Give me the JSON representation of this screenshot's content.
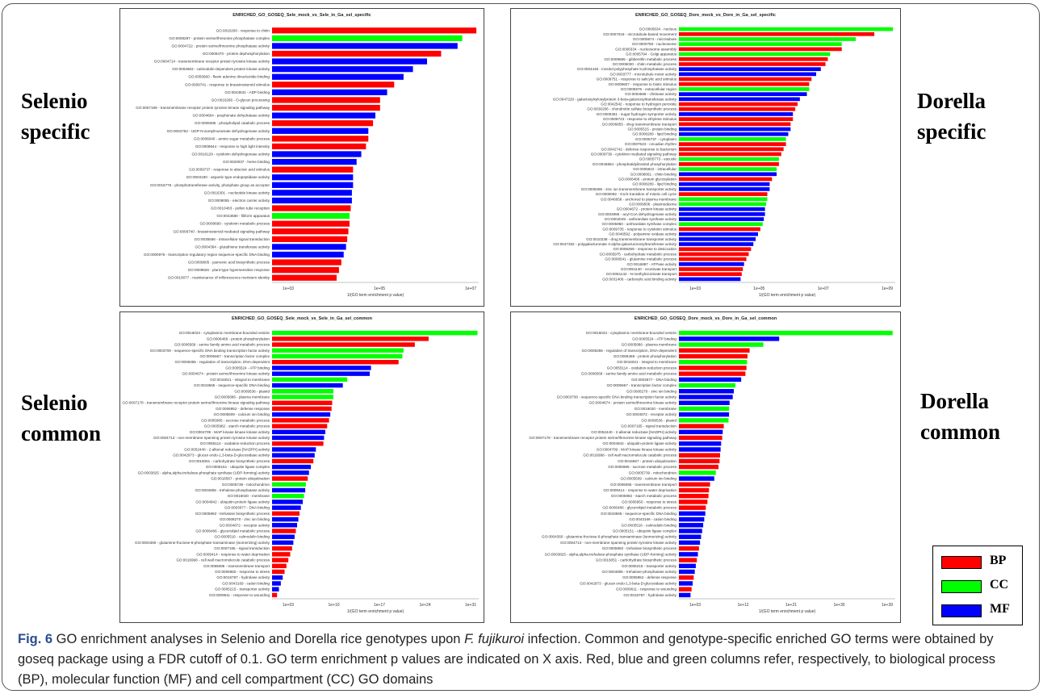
{
  "side_labels": {
    "selenio_specific": "Selenio\nspecific",
    "dorella_specific": "Dorella\nspecific",
    "selenio_common": "Selenio\ncommon",
    "dorella_common": "Dorella\ncommon"
  },
  "legend": [
    {
      "label": "BP",
      "color": "#ff0000"
    },
    {
      "label": "CC",
      "color": "#00ff00"
    },
    {
      "label": "MF",
      "color": "#0000ff"
    }
  ],
  "caption": {
    "fig_label": "Fig. 6",
    "part1": " GO enrichment analyses in Selenio and Dorella rice genotypes upon ",
    "organism": "F. fujikuroi",
    "part2": " infection. Common and genotype-specific enriched GO terms were obtained by goseq package using a FDR cutoff of 0.1. GO term enrichment p values are indicated on X axis. Red, blue and green columns refer, respectively, to biological process (BP), molecular function (MF) and cell compartment (CC) GO domains"
  },
  "colors": {
    "BP": "#ff0000",
    "CC": "#00ff00",
    "MF": "#0000ff"
  },
  "chart_data": [
    {
      "type": "bar",
      "orientation": "horizontal",
      "title": "ENRICHED_GO_GOSEQ_Sele_mock_vs_Sele_in_Ga_sel_specific",
      "xlabel": "1/(GO term enrichment p value)",
      "x_scale": "log",
      "xticks": [
        "1e+03",
        "1e+05",
        "1e+07"
      ],
      "xlim_log10": [
        0,
        8.8
      ],
      "categories": [
        "GO:0010200 - response to chitin",
        "GO:0008287 - protein serine/threonine phosphatase complex",
        "GO:0004722 - protein serine/threonine phosphatase activity",
        "GO:0006470 - protein dephosphorylation",
        "GO:0004714 - transmembrane receptor protein tyrosine kinase activity",
        "GO:0004683 - calmodulin-dependent protein kinase activity",
        "GO:0050660 - flavin adenine dinucleotide binding",
        "GO:0009741 - response to brassinosteroid stimulus",
        "GO:0043531 - ADP binding",
        "GO:0016266 - O-glycan processing",
        "GO:0007169 - transmembrane receptor protein tyrosine kinase signaling pathway",
        "GO:0004664 - prephenate dehydratase activity",
        "GO:0009395 - phospholipid catabolic process",
        "GO:0004762 - UDP-N-acetylmuramate dehydrogenase activity",
        "GO:0006040 - amino sugar metabolic process",
        "GO:0009644 - response to high light intensity",
        "GO:0016129 - cytokinin dehydrogenase activity",
        "GO:0020037 - heme binding",
        "GO:0009737 - response to abscisic acid stimulus",
        "GO:0004190 - aspartic-type endopeptidase activity",
        "GO:0016776 - phosphotransferase activity, phosphate group as acceptor",
        "GO:0016301 - nucleotide kinase activity",
        "GO:0009055 - electron carrier activity",
        "GO:0010483 - pollen tube reception",
        "GO:0043680 - filiform apparatus",
        "GO:0009690 - cytokinin metabolic process",
        "GO:0009740 - brassinosteroid mediated signaling pathway",
        "GO:0035556 - intracellular signal transduction",
        "GO:0004364 - glutathione transferase activity",
        "GO:0000976 - transcription regulatory region sequence-specific DNA binding",
        "GO:0009805 - jasmonic acid biosynthetic process",
        "GO:0009626 - plant-type hypersensitive response",
        "GO:0010077 - maintenance of inflorescence meristem identity"
      ],
      "values_log10": [
        8.7,
        8.1,
        7.9,
        7.2,
        6.6,
        6.0,
        5.6,
        5.2,
        4.9,
        4.6,
        4.6,
        4.4,
        4.3,
        4.1,
        4.1,
        4.0,
        3.8,
        3.6,
        3.45,
        3.45,
        3.45,
        3.4,
        3.4,
        3.35,
        3.3,
        3.3,
        3.25,
        3.2,
        3.15,
        3.05,
        2.95,
        2.85,
        2.75
      ],
      "domains": [
        "BP",
        "CC",
        "MF",
        "BP",
        "MF",
        "MF",
        "MF",
        "BP",
        "MF",
        "BP",
        "BP",
        "MF",
        "BP",
        "MF",
        "BP",
        "BP",
        "MF",
        "MF",
        "BP",
        "MF",
        "MF",
        "MF",
        "MF",
        "BP",
        "CC",
        "BP",
        "BP",
        "BP",
        "MF",
        "MF",
        "BP",
        "BP",
        "BP"
      ]
    },
    {
      "type": "bar",
      "orientation": "horizontal",
      "title": "ENRICHED_GO_GOSEQ_Dore_mock_vs_Dore_in_Ga_sel_specific",
      "xlabel": "1/(GO term enrichment p value)",
      "x_scale": "log",
      "xticks": [
        "1e+03",
        "1e+05",
        "1e+07",
        "1e+09"
      ],
      "xlim_log10": [
        0,
        9.3
      ],
      "categories": [
        "GO:0005634 - nucleus",
        "GO:0007018 - microtubule-based movement",
        "GO:0005874 - microtubule",
        "GO:0000786 - nucleosome",
        "GO:0006334 - nucleosome assembly",
        "GO:0005794 - Golgi apparatus",
        "GO:0009685 - gibberellin metabolic process",
        "GO:0006030 - chitin metabolic process",
        "GO:0004445 - inositol-polyphosphate 5-phosphatase activity",
        "GO:0003777 - microtubule motor activity",
        "GO:0009751 - response to salicylic acid stimulus",
        "GO:0009607 - response to biotic stimulus",
        "GO:0005576 - extracellular region",
        "GO:0004568 - chitinase activity",
        "GO:0047220 - galactosylxylosylprotein 3-beta-galactosyltransferase activity",
        "GO:0042542 - response to hydrogen peroxide",
        "GO:0030206 - chondroitin sulfate biosynthetic process",
        "GO:0005351 - sugar:hydrogen symporter activity",
        "GO:0009723 - response to ethylene stimulus",
        "GO:0006855 - drug transmembrane transport",
        "GO:0005515 - protein binding",
        "GO:0008289 - lipid binding",
        "GO:0005737 - cytoplasm",
        "GO:0007623 - circadian rhythm",
        "GO:0042742 - defense response to bacterium",
        "GO:0009736 - cytokinin mediated signaling pathway",
        "GO:0005773 - vacuole",
        "GO:0046854 - phosphatidylinositol phosphorylation",
        "GO:0005622 - intracellular",
        "GO:0008061 - chitin binding",
        "GO:0006486 - protein glycosylation",
        "GO:0008289 - lipid binding",
        "GO:0005385 - zinc ion transmembrane transporter activity",
        "GO:0000082 - G1/S transition of mitotic cell cycle",
        "GO:0046658 - anchored to plasma membrane",
        "GO:0009506 - plasmodesma",
        "GO:0004672 - protein kinase activity",
        "GO:0003995 - acyl-CoA dehydrogenase activity",
        "GO:0004049 - anthranilate synthase activity",
        "GO:0005950 - anthranilate synthase complex",
        "GO:0009735 - response to cytokinin stimulus",
        "GO:0046592 - polyamine oxidase activity",
        "GO:0010238 - drug transmembrane transporter activity",
        "GO:0047262 - polygalacturonate 4-alpha-galacturonosyltransferase activity",
        "GO:0009269 - response to desiccation",
        "GO:0005975 - carbohydrate metabolic process",
        "GO:0006541 - glutamine metabolic process",
        "GO:0016887 - ATPase activity",
        "GO:0051140 - nicotinate transport",
        "GO:0051142 - N-methylnicotinate transport",
        "GO:0031406 - carboxylic acid binding activity"
      ],
      "values_log10": [
        9.2,
        8.4,
        7.6,
        7.0,
        7.0,
        6.5,
        6.4,
        6.3,
        6.1,
        5.9,
        5.7,
        5.6,
        5.6,
        5.5,
        5.2,
        5.1,
        5.0,
        4.9,
        4.9,
        4.8,
        4.8,
        4.7,
        4.6,
        4.6,
        4.5,
        4.4,
        4.3,
        4.3,
        4.2,
        4.2,
        4.0,
        3.9,
        3.9,
        3.8,
        3.8,
        3.75,
        3.7,
        3.7,
        3.65,
        3.6,
        3.5,
        3.4,
        3.3,
        3.2,
        3.1,
        3.0,
        2.9,
        2.8,
        2.75,
        2.7,
        2.65
      ],
      "domains": [
        "CC",
        "BP",
        "CC",
        "CC",
        "BP",
        "CC",
        "BP",
        "BP",
        "MF",
        "MF",
        "BP",
        "BP",
        "CC",
        "MF",
        "MF",
        "BP",
        "BP",
        "MF",
        "BP",
        "BP",
        "MF",
        "MF",
        "CC",
        "BP",
        "BP",
        "BP",
        "CC",
        "BP",
        "CC",
        "MF",
        "BP",
        "MF",
        "MF",
        "BP",
        "CC",
        "CC",
        "MF",
        "MF",
        "MF",
        "CC",
        "BP",
        "MF",
        "MF",
        "MF",
        "BP",
        "BP",
        "BP",
        "MF",
        "BP",
        "BP",
        "MF"
      ]
    },
    {
      "type": "bar",
      "orientation": "horizontal",
      "title": "ENRICHED_GO_GOSEQ_Sele_mock_vs_Sele_in_Ga_sel_common",
      "xlabel": "1/(GO term enrichment p value)",
      "x_scale": "log",
      "xticks": [
        "1e+03",
        "1e+10",
        "1e+17",
        "1e+24",
        "1e+31"
      ],
      "xlim_log10": [
        0,
        33
      ],
      "categories": [
        "GO:0016023 - cytoplasmic membrane-bounded vesicle",
        "GO:0006468 - protein phosphorylation",
        "GO:0006569 - serine family amino acid metabolic process",
        "GO:0003700 - sequence-specific DNA binding transcription factor activity",
        "GO:0005667 - transcription factor complex",
        "GO:0006355 - regulation of transcription, DNA-dependent",
        "GO:0005524 - ATP binding",
        "GO:0004674 - protein serine/threonine kinase activity",
        "GO:0016021 - integral to membrane",
        "GO:0043565 - sequence-specific DNA binding",
        "GO:0009536 - plastid",
        "GO:0005886 - plasma membrane",
        "GO:0007178 - transmembrane receptor protein serine/threonine kinase signaling pathway",
        "GO:0006952 - defense response",
        "GO:0005509 - calcium ion binding",
        "GO:0005985 - sucrose metabolic process",
        "GO:0005982 - starch metabolic process",
        "GO:0004709 - MAP kinase kinase kinase activity",
        "GO:0004713 - non-membrane spanning protein tyrosine kinase activity",
        "GO:0055114 - oxidation-reduction process",
        "GO:0052440 - 2-alkenal reductase [NADPH] activity",
        "GO:0042973 - glucan endo-1,3-beta-D-glucosidase activity",
        "GO:0016051 - carbohydrate biosynthetic process",
        "GO:0005151 - ubiquitin ligase complex",
        "GO:0003825 - alpha,alpha-trehalose-phosphate synthase (UDP-forming) activity",
        "GO:0016567 - protein ubiquitination",
        "GO:0005739 - mitochondrion",
        "GO:0004805 - trehalose-phosphatase activity",
        "GO:0016020 - membrane",
        "GO:0004842 - ubiquitin-protein ligase activity",
        "GO:0003677 - DNA binding",
        "GO:0005992 - trehalose biosynthetic process",
        "GO:0008270 - zinc ion binding",
        "GO:0004872 - receptor activity",
        "GO:0006486 - glycerolipid metabolic process",
        "GO:0005516 - calmodulin binding",
        "GO:0004360 - glutamine-fructose-6-phosphate transaminase (isomerizing) activity",
        "GO:0007165 - signal transduction",
        "GO:0009414 - response to water deprivation",
        "GO:0016998 - cell wall macromolecule catabolic process",
        "GO:0055085 - transmembrane transport",
        "GO:0006950 - response to stress",
        "GO:0016787 - hydrolase activity",
        "GO:0043169 - cation binding",
        "GO:0005215 - transporter activity",
        "GO:0009611 - response to wounding"
      ],
      "values_log10": [
        32.8,
        25.0,
        22.8,
        21.0,
        20.8,
        20.2,
        15.8,
        15.6,
        12.0,
        11.3,
        9.8,
        9.8,
        9.6,
        9.5,
        9.3,
        9.1,
        8.8,
        8.5,
        8.3,
        8.2,
        7.0,
        6.8,
        6.6,
        6.2,
        5.9,
        5.7,
        5.4,
        5.3,
        5.1,
        4.9,
        4.6,
        4.4,
        4.2,
        4.0,
        3.8,
        3.6,
        3.4,
        3.2,
        2.9,
        2.6,
        2.3,
        2.0,
        1.7,
        1.4,
        1.1,
        0.8
      ],
      "domains": [
        "CC",
        "BP",
        "BP",
        "CC",
        "CC",
        "BP",
        "MF",
        "MF",
        "CC",
        "MF",
        "CC",
        "CC",
        "BP",
        "BP",
        "MF",
        "BP",
        "BP",
        "MF",
        "MF",
        "BP",
        "MF",
        "MF",
        "BP",
        "MF",
        "MF",
        "BP",
        "CC",
        "MF",
        "CC",
        "MF",
        "MF",
        "BP",
        "MF",
        "MF",
        "BP",
        "MF",
        "MF",
        "BP",
        "BP",
        "BP",
        "BP",
        "BP",
        "MF",
        "MF",
        "MF",
        "BP"
      ]
    },
    {
      "type": "bar",
      "orientation": "horizontal",
      "title": "ENRICHED_GO_GOSEQ_Dore_mock_vs_Dore_in_Ga_sel_common",
      "xlabel": "1/(GO term enrichment p value)",
      "x_scale": "log",
      "xticks": [
        "1e+03",
        "1e+12",
        "1e+21",
        "1e+30",
        "1e+39"
      ],
      "xlim_log10": [
        0,
        41
      ],
      "categories": [
        "GO:0016023 - cytoplasmic membrane-bounded vesicle",
        "GO:0005524 - ATP binding",
        "GO:0005886 - plasma membrane",
        "GO:0006355 - regulation of transcription, DNA-dependent",
        "GO:0006468 - protein phosphorylation",
        "GO:0016021 - integral to membrane",
        "GO:0055114 - oxidation-reduction process",
        "GO:0006569 - serine family amino acid metabolic process",
        "GO:0003677 - DNA binding",
        "GO:0005667 - transcription factor complex",
        "GO:0008270 - zinc ion binding",
        "GO:0003700 - sequence-specific DNA binding transcription factor activity",
        "GO:0004674 - protein serine/threonine kinase activity",
        "GO:0016020 - membrane",
        "GO:0004872 - receptor activity",
        "GO:0009536 - plastid",
        "GO:0007165 - signal transduction",
        "GO:0052440 - 2-alkenal reductase [NADPH] activity",
        "GO:0007178 - transmembrane receptor protein serine/threonine kinase signaling pathway",
        "GO:0004842 - ubiquitin-protein ligase activity",
        "GO:0004709 - MAP kinase kinase kinase activity",
        "GO:0016998 - cell wall macromolecule catabolic process",
        "GO:0016567 - protein ubiquitination",
        "GO:0005985 - sucrose metabolic process",
        "GO:0005739 - mitochondrion",
        "GO:0005509 - calcium ion binding",
        "GO:0055085 - transmembrane transport",
        "GO:0009414 - response to water deprivation",
        "GO:0005982 - starch metabolic process",
        "GO:0006950 - response to stress",
        "GO:0006486 - glycerolipid metabolic process",
        "GO:0043565 - sequence-specific DNA binding",
        "GO:0043169 - cation binding",
        "GO:0005516 - calmodulin binding",
        "GO:0005151 - ubiquitin ligase complex",
        "GO:0004360 - glutamine-fructose-6-phosphate transaminase (isomerizing) activity",
        "GO:0004713 - non-membrane spanning protein tyrosine kinase activity",
        "GO:0005992 - trehalose biosynthetic process",
        "GO:0003825 - alpha,alpha-trehalose-phosphate synthase (UDP-forming) activity",
        "GO:0016051 - carbohydrate biosynthetic process",
        "GO:0005215 - transporter activity",
        "GO:0004805 - trehalose-phosphatase activity",
        "GO:0006952 - defense response",
        "GO:0042973 - glucan endo-1,3-beta-D-glucosidase activity",
        "GO:0009611 - response to wounding",
        "GO:0016787 - hydrolase activity"
      ],
      "values_log10": [
        40.5,
        19.0,
        16.0,
        13.4,
        13.0,
        12.9,
        12.8,
        12.6,
        11.8,
        10.7,
        10.4,
        10.2,
        9.6,
        9.5,
        9.5,
        9.4,
        8.5,
        8.3,
        8.2,
        8.0,
        7.9,
        7.8,
        7.7,
        7.5,
        7.0,
        6.7,
        5.9,
        5.7,
        5.6,
        5.4,
        5.1,
        5.0,
        4.8,
        4.6,
        4.4,
        4.2,
        4.0,
        3.8,
        3.6,
        3.4,
        3.2,
        3.0,
        2.8,
        2.6,
        2.4,
        2.2
      ],
      "domains": [
        "CC",
        "MF",
        "CC",
        "BP",
        "BP",
        "CC",
        "BP",
        "BP",
        "MF",
        "CC",
        "MF",
        "MF",
        "MF",
        "CC",
        "MF",
        "CC",
        "BP",
        "MF",
        "BP",
        "MF",
        "MF",
        "BP",
        "BP",
        "BP",
        "CC",
        "MF",
        "BP",
        "BP",
        "BP",
        "BP",
        "BP",
        "MF",
        "MF",
        "MF",
        "MF",
        "MF",
        "MF",
        "BP",
        "MF",
        "BP",
        "MF",
        "MF",
        "BP",
        "MF",
        "BP",
        "MF"
      ]
    }
  ]
}
